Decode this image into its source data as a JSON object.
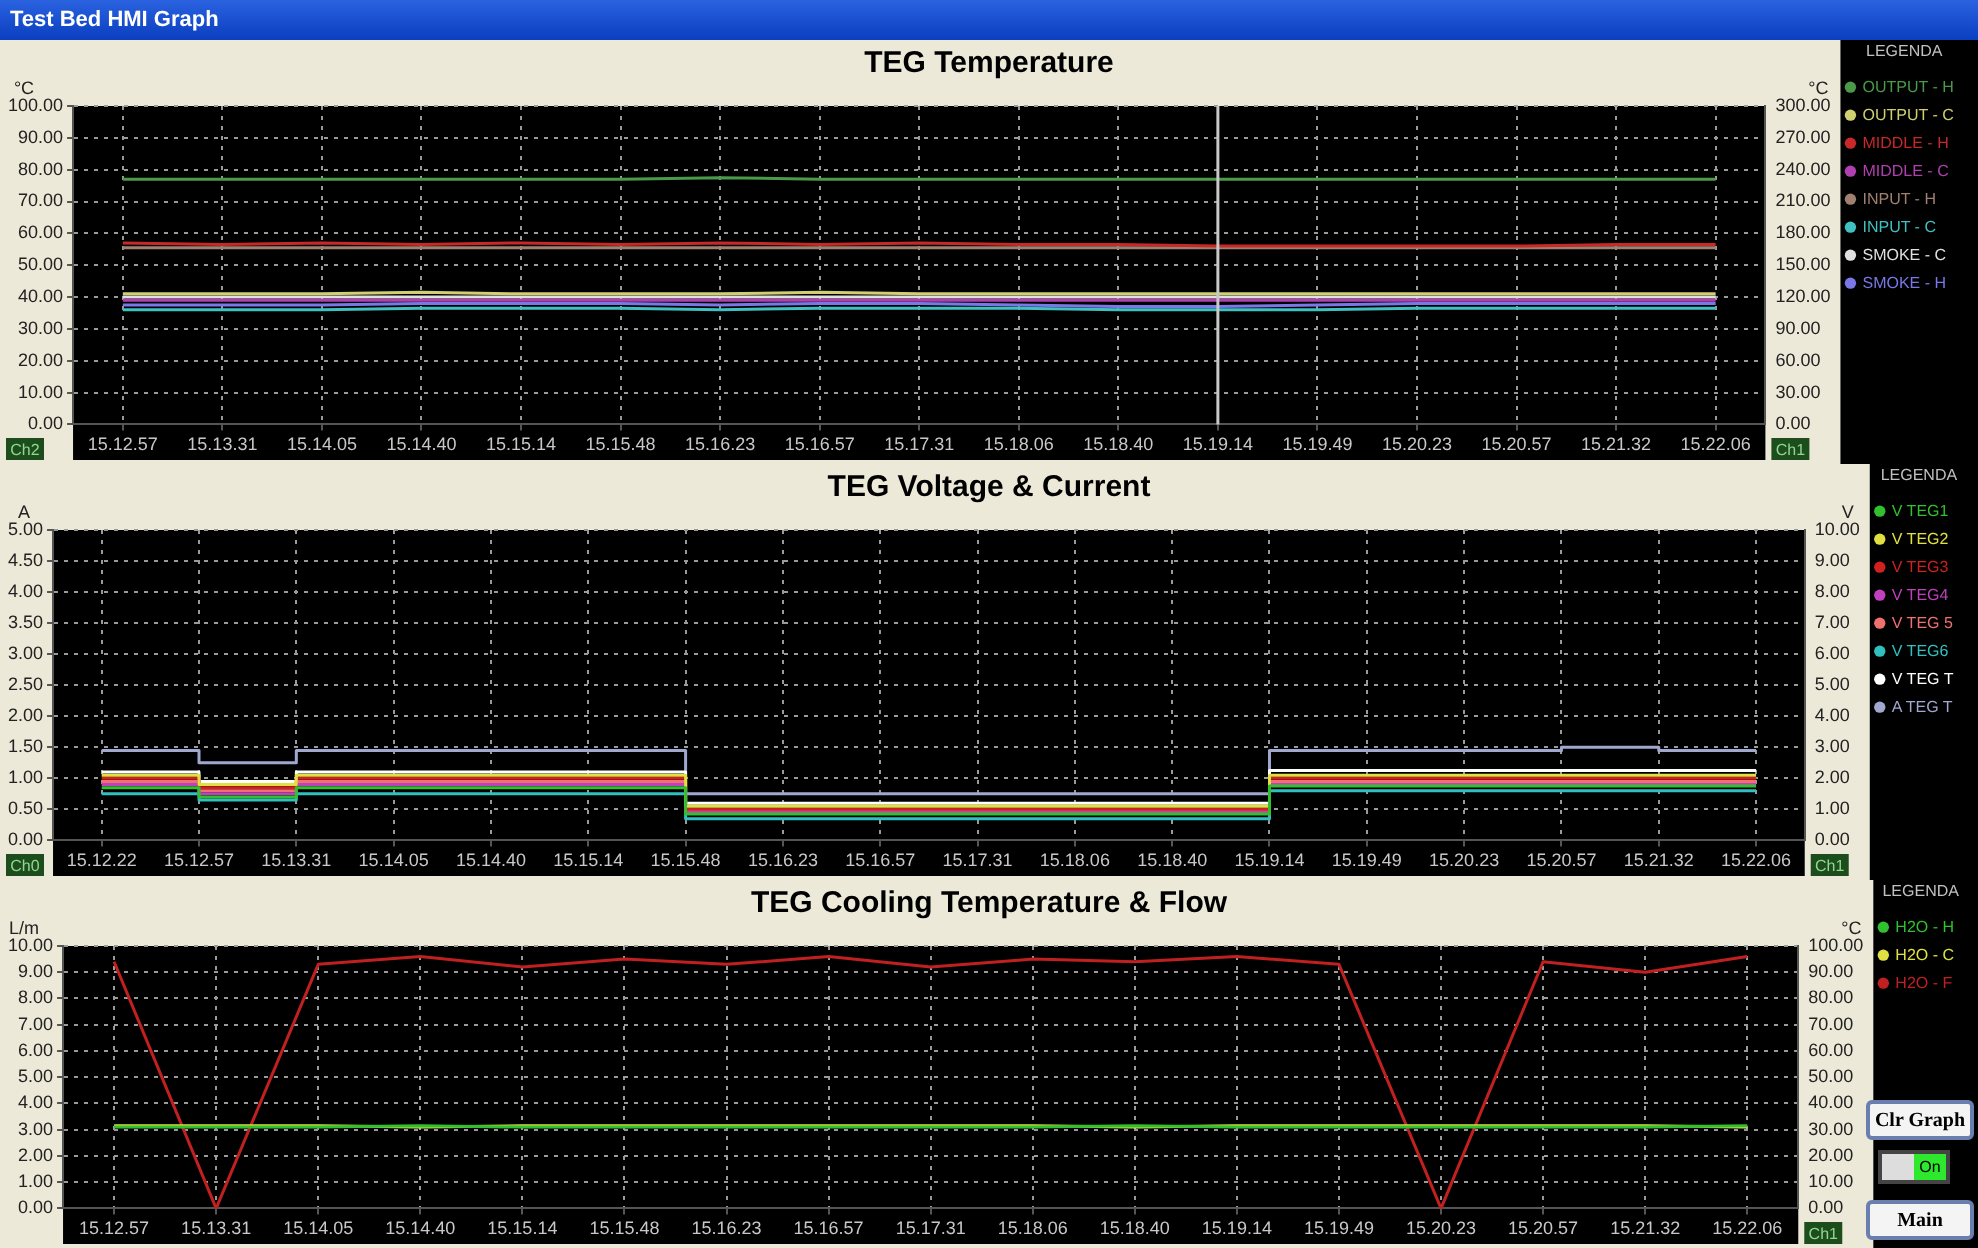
{
  "chart_data": [
    {
      "type": "line",
      "title": "TEG Temperature",
      "ylabel": "°C",
      "y2label": "°C",
      "legend": "right",
      "legend_title": "LEGENDA",
      "grid": true,
      "annotations": [
        "Test Bed HMI Graph",
        "Ch2",
        "Ch1"
      ],
      "categories": [
        "15.12.57",
        "15.13.31",
        "15.14.05",
        "15.14.40",
        "15.15.14",
        "15.15.48",
        "15.16.23",
        "15.16.57",
        "15.17.31",
        "15.18.06",
        "15.18.40",
        "15.19.14",
        "15.19.49",
        "15.20.23",
        "15.20.57",
        "15.21.32",
        "15.22.06"
      ],
      "series": [
        {
          "name": "OUTPUT - H",
          "color": "#4a9a4a",
          "values": [
            77,
            77,
            77,
            77,
            77,
            77,
            77.5,
            77,
            77,
            77,
            77,
            77,
            77,
            77,
            77,
            77,
            77
          ]
        },
        {
          "name": "OUTPUT - C",
          "color": "#d0d070",
          "values": [
            41,
            41,
            41,
            41.5,
            41,
            41,
            41,
            41.5,
            41,
            41,
            41,
            41,
            41,
            41,
            41,
            41,
            41
          ]
        },
        {
          "name": "MIDDLE - H",
          "color": "#c82828",
          "values": [
            57,
            56.5,
            57,
            56.5,
            57,
            56.5,
            57,
            56.5,
            57,
            56.5,
            56.5,
            56,
            56,
            56,
            56,
            56.5,
            56.5
          ]
        },
        {
          "name": "MIDDLE - C",
          "color": "#b040b0",
          "values": [
            39,
            39,
            39,
            39,
            39,
            39,
            39,
            39,
            39,
            39,
            39,
            39,
            39,
            39,
            39,
            39,
            39
          ]
        },
        {
          "name": "INPUT - H",
          "color": "#a08070",
          "values": [
            55.5,
            55.5,
            55.5,
            55.5,
            55.5,
            55.5,
            55.5,
            55.5,
            55.5,
            55.5,
            55.5,
            55.5,
            55.5,
            55.5,
            55.5,
            55.5,
            55.5
          ]
        },
        {
          "name": "INPUT - C",
          "color": "#40c0c0",
          "values": [
            36,
            36,
            36,
            36.5,
            36.5,
            36.5,
            36,
            36.5,
            36.5,
            36.5,
            36,
            36,
            36,
            36.5,
            36.5,
            36.5,
            36.5
          ]
        },
        {
          "name": "SMOKE - C",
          "color": "#e0e0e0",
          "values": [
            40,
            40,
            40,
            40,
            40,
            40,
            40,
            40,
            40,
            40,
            40,
            40,
            40,
            40,
            40,
            40,
            40
          ]
        },
        {
          "name": "SMOKE - H",
          "color": "#7878e8",
          "values": [
            37.5,
            37.5,
            37.5,
            38,
            38,
            38,
            37.5,
            38,
            38,
            37.5,
            37,
            37,
            37.5,
            38,
            38,
            38,
            38
          ]
        }
      ],
      "ref_lines": [
        {
          "axis": "x",
          "value": "15.19.14",
          "color": "#c8c8c8"
        }
      ],
      "ylim": [
        0,
        100
      ],
      "yticks": [
        {
          "value": 0,
          "label": "0.00"
        },
        {
          "value": 10,
          "label": "10.00"
        },
        {
          "value": 20,
          "label": "20.00"
        },
        {
          "value": 30,
          "label": "30.00"
        },
        {
          "value": 40,
          "label": "40.00"
        },
        {
          "value": 50,
          "label": "50.00"
        },
        {
          "value": 60,
          "label": "60.00"
        },
        {
          "value": 70,
          "label": "70.00"
        },
        {
          "value": 80,
          "label": "80.00"
        },
        {
          "value": 90,
          "label": "90.00"
        },
        {
          "value": 100,
          "label": "100.00"
        }
      ],
      "y2lim": [
        0,
        300
      ],
      "y2ticks": [
        {
          "value": 0,
          "label": "0.00"
        },
        {
          "value": 30,
          "label": "30.00"
        },
        {
          "value": 60,
          "label": "60.00"
        },
        {
          "value": 90,
          "label": "90.00"
        },
        {
          "value": 120,
          "label": "120.00"
        },
        {
          "value": 150,
          "label": "150.00"
        },
        {
          "value": 180,
          "label": "180.00"
        },
        {
          "value": 210,
          "label": "210.00"
        },
        {
          "value": 240,
          "label": "240.00"
        },
        {
          "value": 270,
          "label": "270.00"
        },
        {
          "value": 300,
          "label": "300.00"
        }
      ]
    },
    {
      "type": "step",
      "title": "TEG Voltage & Current",
      "ylabel": "A",
      "y2label": "V",
      "legend": "right",
      "legend_title": "LEGENDA",
      "grid": true,
      "annotations": [
        "Ch0",
        "Ch1"
      ],
      "categories": [
        "15.12.22",
        "15.12.57",
        "15.13.31",
        "15.14.05",
        "15.14.40",
        "15.15.14",
        "15.15.48",
        "15.16.23",
        "15.16.57",
        "15.17.31",
        "15.18.06",
        "15.18.40",
        "15.19.14",
        "15.19.49",
        "15.20.23",
        "15.20.57",
        "15.21.32",
        "15.22.06"
      ],
      "series": [
        {
          "name": "V TEG1",
          "color": "#30c030",
          "axis": "y2",
          "values": [
            1.7,
            1.4,
            1.7,
            1.7,
            1.7,
            1.7,
            0.85,
            0.85,
            0.85,
            0.85,
            0.85,
            0.85,
            1.75,
            1.75,
            1.75,
            1.75,
            1.75,
            1.75
          ]
        },
        {
          "name": "V TEG2",
          "color": "#e0e040",
          "axis": "y2",
          "values": [
            2.1,
            1.8,
            2.1,
            2.1,
            2.1,
            2.1,
            1.1,
            1.1,
            1.1,
            1.1,
            1.1,
            1.1,
            2.1,
            2.1,
            2.1,
            2.1,
            2.1,
            2.1
          ]
        },
        {
          "name": "V TEG3",
          "color": "#d02020",
          "axis": "y2",
          "values": [
            2,
            1.7,
            2,
            2,
            2,
            2,
            1,
            1,
            1,
            1,
            1,
            1,
            2,
            2,
            2,
            2,
            2,
            2
          ]
        },
        {
          "name": "V TEG4",
          "color": "#c040c0",
          "axis": "y2",
          "values": [
            1.8,
            1.5,
            1.8,
            1.8,
            1.8,
            1.8,
            0.9,
            0.9,
            0.9,
            0.9,
            0.9,
            0.9,
            1.8,
            1.8,
            1.8,
            1.8,
            1.8,
            1.8
          ]
        },
        {
          "name": "V TEG 5",
          "color": "#f07070",
          "axis": "y2",
          "values": [
            1.9,
            1.6,
            1.9,
            1.9,
            1.9,
            1.9,
            0.95,
            0.95,
            0.95,
            0.95,
            0.95,
            0.95,
            1.9,
            1.9,
            1.9,
            1.9,
            1.9,
            1.9
          ]
        },
        {
          "name": "V TEG6",
          "color": "#30c0c0",
          "axis": "y2",
          "values": [
            1.5,
            1.3,
            1.5,
            1.5,
            1.5,
            1.5,
            0.7,
            0.7,
            0.7,
            0.7,
            0.7,
            0.7,
            1.6,
            1.6,
            1.6,
            1.6,
            1.6,
            1.6
          ]
        },
        {
          "name": "V TEG T",
          "color": "#ffffff",
          "axis": "y2",
          "values": [
            2.2,
            1.9,
            2.2,
            2.2,
            2.2,
            2.2,
            1.2,
            1.2,
            1.2,
            1.2,
            1.2,
            1.2,
            2.25,
            2.25,
            2.25,
            2.25,
            2.25,
            2.25
          ]
        },
        {
          "name": "A TEG T",
          "color": "#a0a8d0",
          "values": [
            1.45,
            1.25,
            1.45,
            1.45,
            1.45,
            1.45,
            0.75,
            0.75,
            0.75,
            0.75,
            0.75,
            0.75,
            1.45,
            1.45,
            1.45,
            1.5,
            1.45,
            1.45
          ]
        }
      ],
      "ylim": [
        0,
        5
      ],
      "yticks": [
        {
          "value": 0,
          "label": "0.00"
        },
        {
          "value": 0.5,
          "label": "0.50"
        },
        {
          "value": 1,
          "label": "1.00"
        },
        {
          "value": 1.5,
          "label": "1.50"
        },
        {
          "value": 2,
          "label": "2.00"
        },
        {
          "value": 2.5,
          "label": "2.50"
        },
        {
          "value": 3,
          "label": "3.00"
        },
        {
          "value": 3.5,
          "label": "3.50"
        },
        {
          "value": 4,
          "label": "4.00"
        },
        {
          "value": 4.5,
          "label": "4.50"
        },
        {
          "value": 5,
          "label": "5.00"
        }
      ],
      "y2lim": [
        0,
        10
      ],
      "y2ticks": [
        {
          "value": 0,
          "label": "0.00"
        },
        {
          "value": 1,
          "label": "1.00"
        },
        {
          "value": 2,
          "label": "2.00"
        },
        {
          "value": 3,
          "label": "3.00"
        },
        {
          "value": 4,
          "label": "4.00"
        },
        {
          "value": 5,
          "label": "5.00"
        },
        {
          "value": 6,
          "label": "6.00"
        },
        {
          "value": 7,
          "label": "7.00"
        },
        {
          "value": 8,
          "label": "8.00"
        },
        {
          "value": 9,
          "label": "9.00"
        },
        {
          "value": 10,
          "label": "10.00"
        }
      ]
    },
    {
      "type": "line",
      "title": "TEG Cooling Temperature & Flow",
      "ylabel": "L/m",
      "y2label": "°C",
      "legend": "right",
      "legend_title": "LEGENDA",
      "grid": true,
      "annotations": [
        "Ch1",
        "Clr Graph",
        "On",
        "Main"
      ],
      "categories": [
        "15.12.57",
        "15.13.31",
        "15.14.05",
        "15.14.40",
        "15.15.14",
        "15.15.48",
        "15.16.23",
        "15.16.57",
        "15.17.31",
        "15.18.06",
        "15.18.40",
        "15.19.14",
        "15.19.49",
        "15.20.23",
        "15.20.57",
        "15.21.32",
        "15.22.06"
      ],
      "series": [
        {
          "name": "H2O - H",
          "color": "#30c030",
          "axis": "y2",
          "values": [
            31,
            31,
            31,
            31.5,
            31,
            31,
            31,
            31,
            31,
            31,
            31.5,
            31,
            31,
            31,
            31,
            31,
            31.5
          ]
        },
        {
          "name": "H2O - C",
          "color": "#e0e040",
          "axis": "y2",
          "values": [
            31.5,
            31.5,
            31.5,
            31,
            31.5,
            31.5,
            31.5,
            31.5,
            31.5,
            31.5,
            31,
            31.5,
            31.5,
            31.5,
            31.5,
            31.5,
            31
          ]
        },
        {
          "name": "H2O - F",
          "color": "#c02020",
          "values": [
            9.4,
            0,
            9.3,
            9.6,
            9.2,
            9.5,
            9.3,
            9.6,
            9.2,
            9.5,
            9.4,
            9.6,
            9.3,
            0,
            9.4,
            9.0,
            9.6
          ]
        }
      ],
      "ylim": [
        0,
        10
      ],
      "yticks": [
        {
          "value": 0,
          "label": "0.00"
        },
        {
          "value": 1,
          "label": "1.00"
        },
        {
          "value": 2,
          "label": "2.00"
        },
        {
          "value": 3,
          "label": "3.00"
        },
        {
          "value": 4,
          "label": "4.00"
        },
        {
          "value": 5,
          "label": "5.00"
        },
        {
          "value": 6,
          "label": "6.00"
        },
        {
          "value": 7,
          "label": "7.00"
        },
        {
          "value": 8,
          "label": "8.00"
        },
        {
          "value": 9,
          "label": "9.00"
        },
        {
          "value": 10,
          "label": "10.00"
        }
      ],
      "y2lim": [
        0,
        100
      ],
      "y2ticks": [
        {
          "value": 0,
          "label": "0.00"
        },
        {
          "value": 10,
          "label": "10.00"
        },
        {
          "value": 20,
          "label": "20.00"
        },
        {
          "value": 30,
          "label": "30.00"
        },
        {
          "value": 40,
          "label": "40.00"
        },
        {
          "value": 50,
          "label": "50.00"
        },
        {
          "value": 60,
          "label": "60.00"
        },
        {
          "value": 70,
          "label": "70.00"
        },
        {
          "value": 80,
          "label": "80.00"
        },
        {
          "value": 90,
          "label": "90.00"
        },
        {
          "value": 100,
          "label": "100.00"
        }
      ]
    }
  ]
}
